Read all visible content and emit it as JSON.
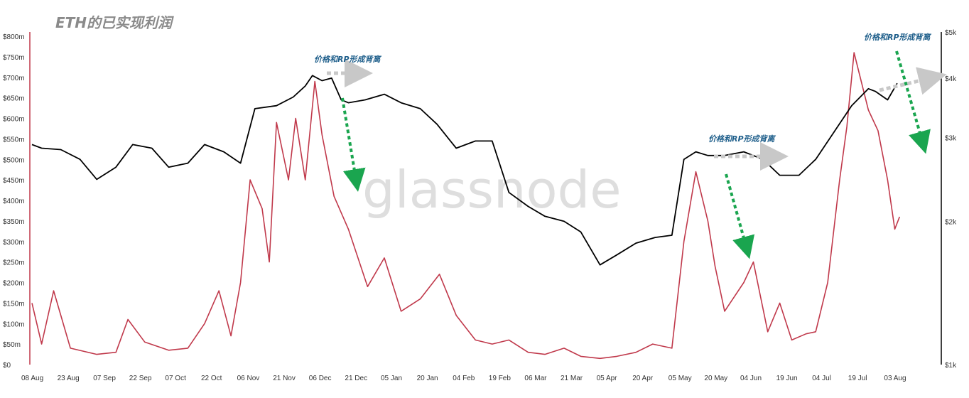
{
  "title": "ETH的已实现利润",
  "watermark": "glassnode",
  "annotations": [
    {
      "text": "价格和RP形成背离"
    },
    {
      "text": "价格和RP形成背离"
    },
    {
      "text": "价格和RP形成背离"
    }
  ],
  "chart_data": {
    "type": "line",
    "title": "ETH的已实现利润",
    "xlabel": "",
    "ylabel": "",
    "x_ticks": [
      "08 Aug",
      "23 Aug",
      "07 Sep",
      "22 Sep",
      "07 Oct",
      "22 Oct",
      "06 Nov",
      "21 Nov",
      "06 Dec",
      "21 Dec",
      "05 Jan",
      "20 Jan",
      "04 Feb",
      "19 Feb",
      "06 Mar",
      "21 Mar",
      "05 Apr",
      "20 Apr",
      "05 May",
      "20 May",
      "04 Jun",
      "19 Jun",
      "04 Jul",
      "19 Jul",
      "03 Aug"
    ],
    "y_left": {
      "ticks": [
        "$0",
        "$50m",
        "$100m",
        "$150m",
        "$200m",
        "$250m",
        "$300m",
        "$350m",
        "$400m",
        "$450m",
        "$500m",
        "$550m",
        "$600m",
        "$650m",
        "$700m",
        "$750m",
        "$800m"
      ],
      "range": [
        0,
        800
      ]
    },
    "y_right": {
      "ticks": [
        "$1k",
        "$2k",
        "$3k",
        "$4k",
        "$5k"
      ],
      "scale": "log",
      "range": [
        1000,
        5000
      ]
    },
    "grid": false,
    "series": [
      {
        "color": "#000000",
        "axis": "right",
        "points": [
          [
            "08 Aug",
            2900
          ],
          [
            "15 Aug",
            2850
          ],
          [
            "23 Aug",
            2830
          ],
          [
            "31 Aug",
            2700
          ],
          [
            "07 Sep",
            2450
          ],
          [
            "15 Sep",
            2600
          ],
          [
            "22 Sep",
            2900
          ],
          [
            "30 Sep",
            2850
          ],
          [
            "07 Oct",
            2600
          ],
          [
            "15 Oct",
            2650
          ],
          [
            "22 Oct",
            2900
          ],
          [
            "30 Oct",
            2800
          ],
          [
            "06 Nov",
            2650
          ],
          [
            "12 Nov",
            3450
          ],
          [
            "21 Nov",
            3500
          ],
          [
            "28 Nov",
            3650
          ],
          [
            "03 Dec",
            3850
          ],
          [
            "06 Dec",
            4050
          ],
          [
            "10 Dec",
            3950
          ],
          [
            "14 Dec",
            4000
          ],
          [
            "18 Dec",
            3600
          ],
          [
            "21 Dec",
            3550
          ],
          [
            "28 Dec",
            3600
          ],
          [
            "05 Jan",
            3700
          ],
          [
            "12 Jan",
            3550
          ],
          [
            "20 Jan",
            3450
          ],
          [
            "27 Jan",
            3200
          ],
          [
            "04 Feb",
            2850
          ],
          [
            "12 Feb",
            2950
          ],
          [
            "19 Feb",
            2950
          ],
          [
            "26 Feb",
            2300
          ],
          [
            "06 Mar",
            2150
          ],
          [
            "13 Mar",
            2050
          ],
          [
            "21 Mar",
            2000
          ],
          [
            "28 Mar",
            1900
          ],
          [
            "05 Apr",
            1620
          ],
          [
            "12 Apr",
            1700
          ],
          [
            "20 Apr",
            1800
          ],
          [
            "28 Apr",
            1850
          ],
          [
            "05 May",
            1870
          ],
          [
            "10 May",
            2700
          ],
          [
            "15 May",
            2800
          ],
          [
            "20 May",
            2750
          ],
          [
            "27 May",
            2750
          ],
          [
            "04 Jun",
            2800
          ],
          [
            "12 Jun",
            2700
          ],
          [
            "19 Jun",
            2500
          ],
          [
            "27 Jun",
            2500
          ],
          [
            "04 Jul",
            2700
          ],
          [
            "12 Jul",
            3100
          ],
          [
            "19 Jul",
            3500
          ],
          [
            "26 Jul",
            3800
          ],
          [
            "29 Jul",
            3750
          ],
          [
            "03 Aug",
            3600
          ],
          [
            "07 Aug",
            3900
          ]
        ]
      },
      {
        "color": "#c0394b",
        "axis": "left",
        "points": [
          [
            "08 Aug",
            150
          ],
          [
            "15 Aug",
            50
          ],
          [
            "20 Aug",
            180
          ],
          [
            "27 Aug",
            40
          ],
          [
            "07 Sep",
            25
          ],
          [
            "15 Sep",
            30
          ],
          [
            "20 Sep",
            110
          ],
          [
            "27 Sep",
            55
          ],
          [
            "07 Oct",
            35
          ],
          [
            "15 Oct",
            40
          ],
          [
            "22 Oct",
            100
          ],
          [
            "28 Oct",
            180
          ],
          [
            "02 Nov",
            70
          ],
          [
            "06 Nov",
            200
          ],
          [
            "10 Nov",
            450
          ],
          [
            "15 Nov",
            380
          ],
          [
            "18 Nov",
            250
          ],
          [
            "21 Nov",
            590
          ],
          [
            "26 Nov",
            450
          ],
          [
            "29 Nov",
            600
          ],
          [
            "03 Dec",
            450
          ],
          [
            "07 Dec",
            690
          ],
          [
            "10 Dec",
            560
          ],
          [
            "15 Dec",
            410
          ],
          [
            "21 Dec",
            330
          ],
          [
            "29 Dec",
            190
          ],
          [
            "05 Jan",
            260
          ],
          [
            "12 Jan",
            130
          ],
          [
            "20 Jan",
            160
          ],
          [
            "28 Jan",
            220
          ],
          [
            "04 Feb",
            120
          ],
          [
            "12 Feb",
            60
          ],
          [
            "19 Feb",
            50
          ],
          [
            "26 Feb",
            60
          ],
          [
            "06 Mar",
            30
          ],
          [
            "13 Mar",
            25
          ],
          [
            "21 Mar",
            40
          ],
          [
            "28 Mar",
            20
          ],
          [
            "05 Apr",
            15
          ],
          [
            "12 Apr",
            20
          ],
          [
            "20 Apr",
            30
          ],
          [
            "27 Apr",
            50
          ],
          [
            "05 May",
            40
          ],
          [
            "10 May",
            300
          ],
          [
            "15 May",
            470
          ],
          [
            "20 May",
            350
          ],
          [
            "23 May",
            240
          ],
          [
            "27 May",
            130
          ],
          [
            "04 Jun",
            200
          ],
          [
            "08 Jun",
            250
          ],
          [
            "14 Jun",
            80
          ],
          [
            "19 Jun",
            150
          ],
          [
            "24 Jun",
            60
          ],
          [
            "30 Jun",
            75
          ],
          [
            "04 Jul",
            80
          ],
          [
            "09 Jul",
            200
          ],
          [
            "14 Jul",
            450
          ],
          [
            "17 Jul",
            580
          ],
          [
            "20 Jul",
            760
          ],
          [
            "23 Jul",
            690
          ],
          [
            "26 Jul",
            620
          ],
          [
            "30 Jul",
            570
          ],
          [
            "03 Aug",
            450
          ],
          [
            "06 Aug",
            330
          ],
          [
            "08 Aug",
            360
          ]
        ]
      }
    ]
  }
}
